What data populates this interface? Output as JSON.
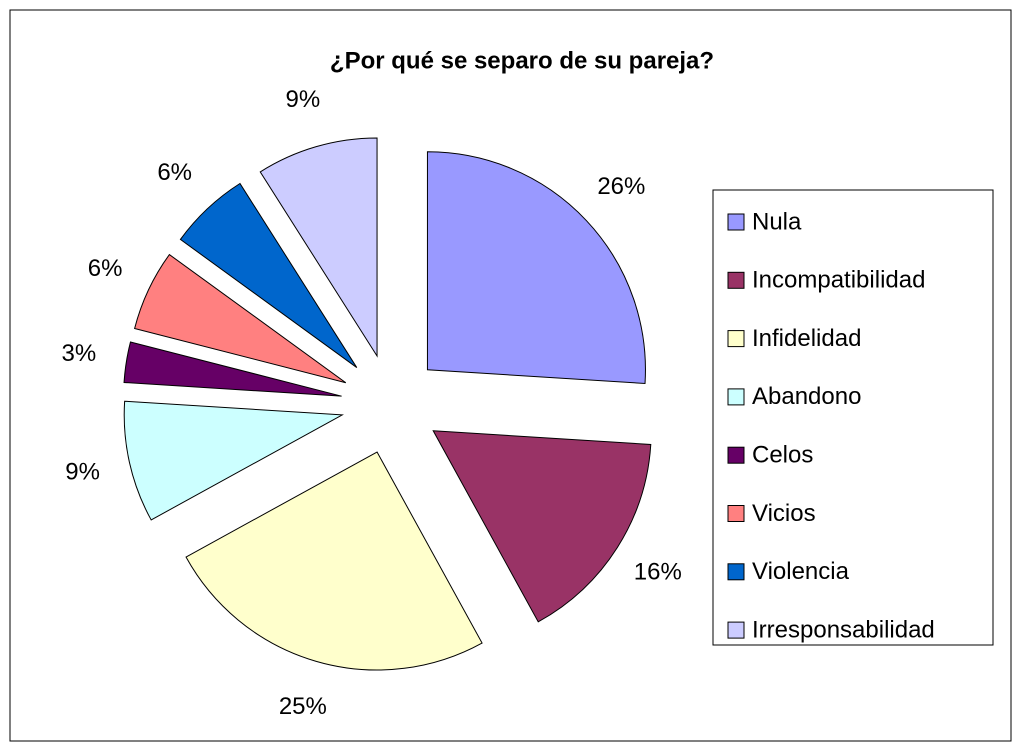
{
  "chart_data": {
    "type": "pie",
    "title": "¿Por qué se separo de su pareja?",
    "categories": [
      "Nula",
      "Incompatibilidad",
      "Infidelidad",
      "Abandono",
      "Celos",
      "Vicios",
      "Violencia",
      "Irresponsabilidad"
    ],
    "values": [
      26,
      16,
      25,
      9,
      3,
      6,
      6,
      9
    ],
    "value_labels": [
      "26%",
      "16%",
      "25%",
      "9%",
      "3%",
      "6%",
      "6%",
      "9%"
    ],
    "colors": [
      "#9999ff",
      "#993366",
      "#ffffcc",
      "#ccffff",
      "#660066",
      "#ff8080",
      "#0066cc",
      "#ccccff"
    ],
    "legend": "right"
  }
}
